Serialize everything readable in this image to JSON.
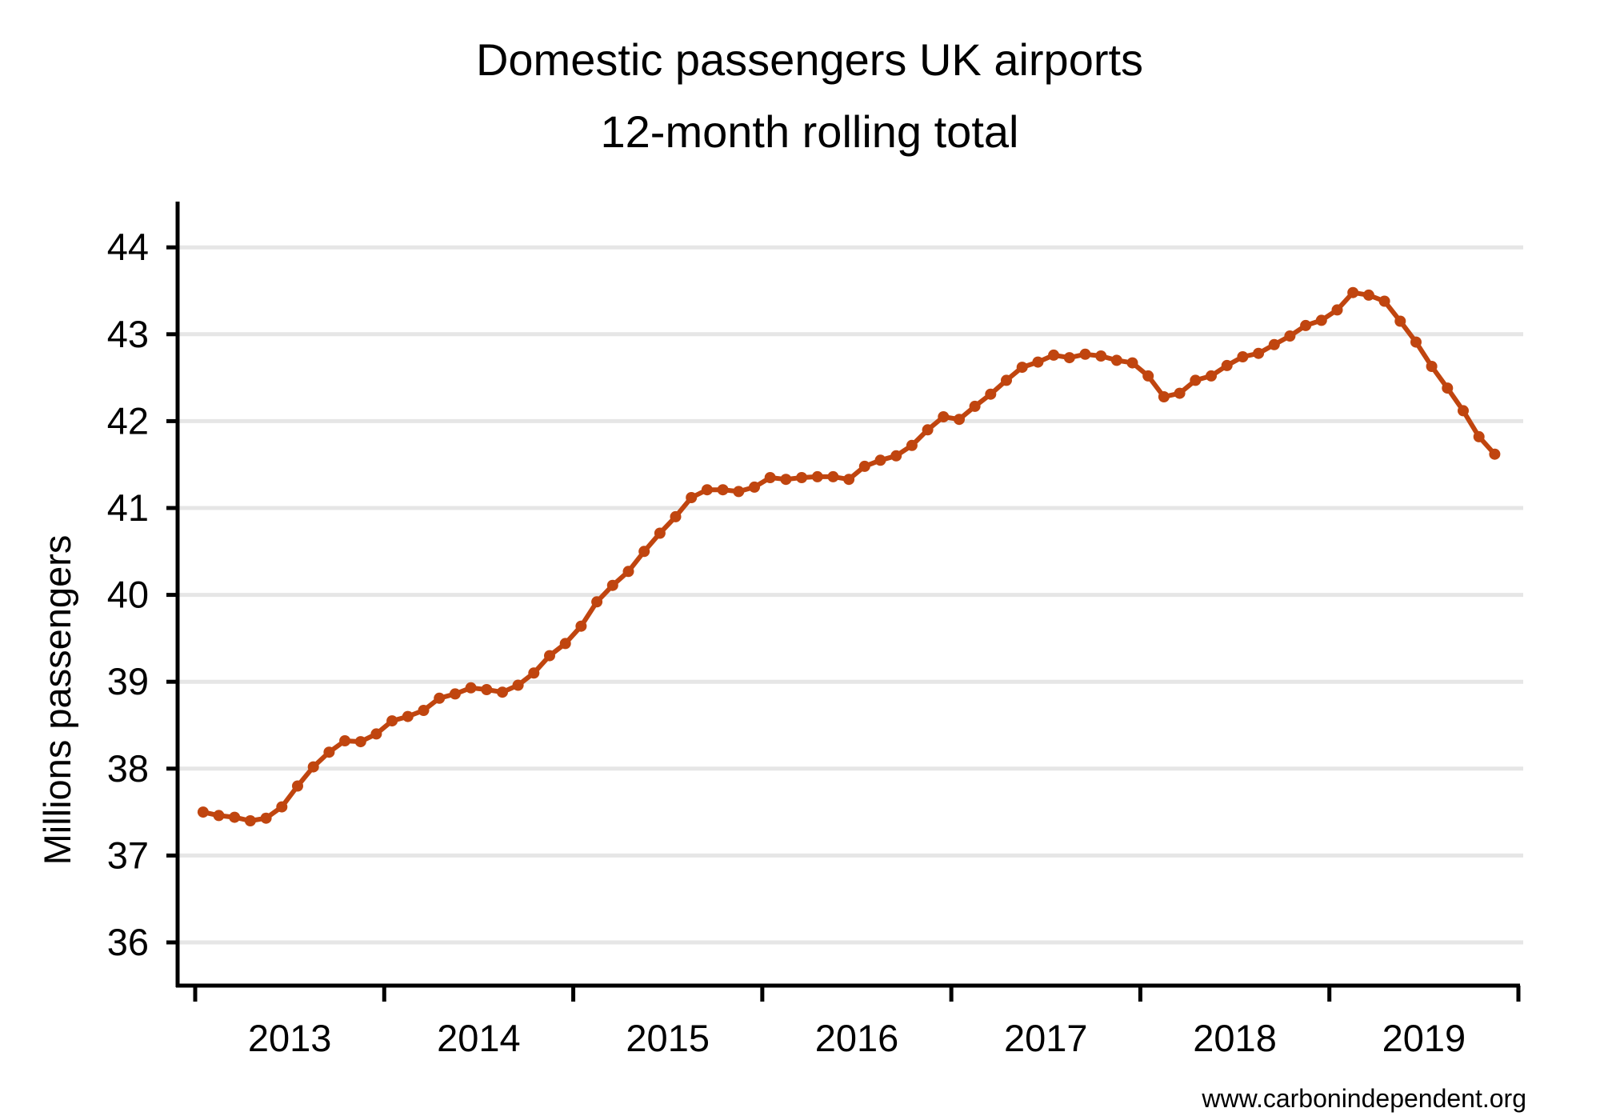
{
  "chart_data": {
    "type": "line",
    "title": "Domestic passengers UK airports",
    "subtitle": "12-month rolling total",
    "xlabel": "",
    "ylabel": "Millions passengers",
    "ylim": [
      35.5,
      44.5
    ],
    "yticks": [
      36,
      37,
      38,
      39,
      40,
      41,
      42,
      43,
      44
    ],
    "xlim": [
      2013.0,
      2020.0
    ],
    "xtick_labels": [
      {
        "label": "2013",
        "x": 2013.5
      },
      {
        "label": "2014",
        "x": 2014.5
      },
      {
        "label": "2015",
        "x": 2015.5
      },
      {
        "label": "2016",
        "x": 2016.5
      },
      {
        "label": "2017",
        "x": 2017.5
      },
      {
        "label": "2018",
        "x": 2018.5
      },
      {
        "label": "2019",
        "x": 2019.5
      }
    ],
    "year_boundaries": [
      2013,
      2014,
      2015,
      2016,
      2017,
      2018,
      2019,
      2020
    ],
    "grid": true,
    "legend": "none",
    "color": "#c0450f",
    "series": [
      {
        "name": "Domestic passengers (12-month rolling total)",
        "start": 2013.0417,
        "step": 0.08333,
        "values": [
          37.5,
          37.46,
          37.44,
          37.4,
          37.43,
          37.56,
          37.8,
          38.02,
          38.19,
          38.32,
          38.31,
          38.4,
          38.55,
          38.6,
          38.67,
          38.81,
          38.86,
          38.93,
          38.91,
          38.88,
          38.96,
          39.1,
          39.3,
          39.44,
          39.64,
          39.92,
          40.11,
          40.27,
          40.5,
          40.71,
          40.9,
          41.12,
          41.21,
          41.21,
          41.19,
          41.24,
          41.35,
          41.33,
          41.35,
          41.36,
          41.36,
          41.33,
          41.48,
          41.55,
          41.6,
          41.72,
          41.9,
          42.05,
          42.02,
          42.17,
          42.31,
          42.47,
          42.62,
          42.68,
          42.76,
          42.73,
          42.77,
          42.75,
          42.7,
          42.67,
          42.52,
          42.28,
          42.32,
          42.47,
          42.52,
          42.64,
          42.74,
          42.78,
          42.88,
          42.98,
          43.1,
          43.16,
          43.28,
          43.48,
          43.45,
          43.38,
          43.15,
          42.91,
          42.63,
          42.38,
          42.12,
          41.82,
          41.62
        ]
      }
    ]
  },
  "source_note": "www.carbonindependent.org"
}
